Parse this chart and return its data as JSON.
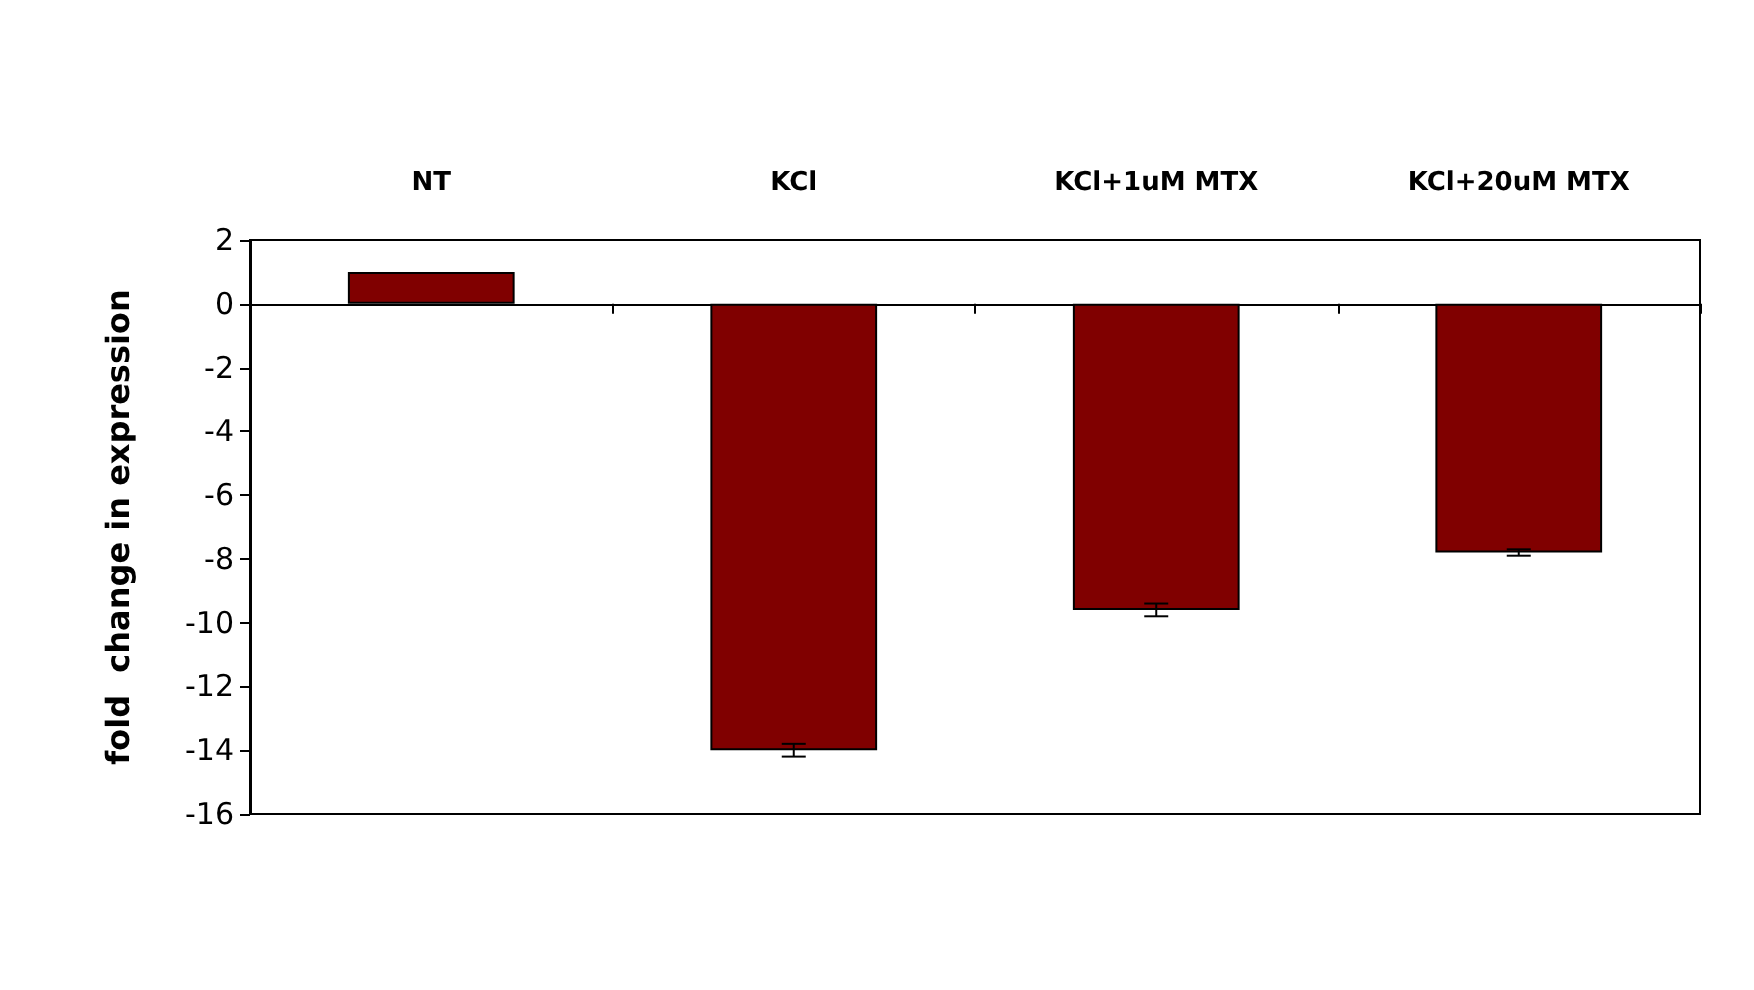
{
  "chart_data": {
    "type": "bar",
    "ylabel": "fold  change in expression",
    "categories": [
      "NT",
      "KCl",
      "KCl+1uM MTX",
      "KCl+20uM MTX"
    ],
    "values": [
      1.0,
      -14.0,
      -9.6,
      -7.8
    ],
    "errors": [
      null,
      0.2,
      0.2,
      0.1
    ],
    "ylim": [
      -16,
      2
    ],
    "yticks": [
      -16,
      -14,
      -12,
      -10,
      -8,
      -6,
      -4,
      -2,
      0,
      2
    ],
    "color": "#800000"
  }
}
